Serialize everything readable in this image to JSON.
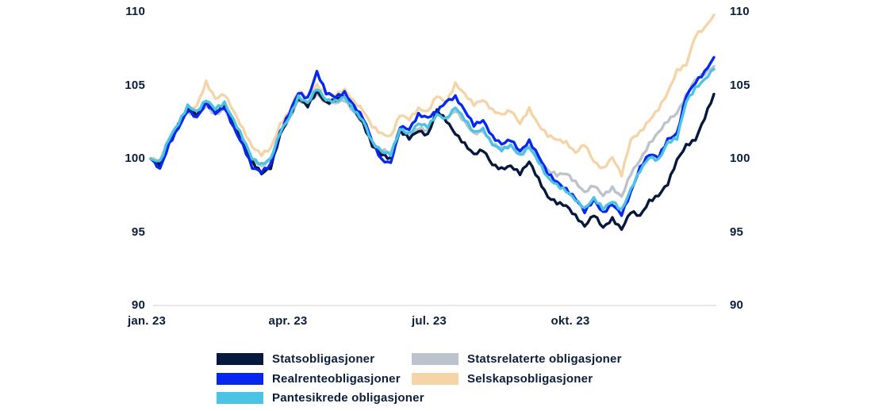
{
  "chart_data": {
    "type": "line",
    "title": "",
    "xlabel": "",
    "ylabel": "",
    "ylim": [
      90,
      110
    ],
    "grid": false,
    "legend_position": "bottom",
    "x_unit": "months (jan. 2023 - jan. 2024), 62 evenly spaced samples",
    "x_tick_labels": [
      "jan. 23",
      "apr. 23",
      "jul. 23",
      "okt. 23"
    ],
    "y_tick_labels": [
      "110",
      "105",
      "100",
      "95",
      "90"
    ],
    "y_ticks": [
      90,
      95,
      100,
      105,
      110
    ],
    "axis_line_color": "#DBDBDB",
    "text_color": "#0A1E3C",
    "series": [
      {
        "name": "Statsobligasjoner",
        "color": "#06183D",
        "values": [
          100.0,
          99.6,
          101.2,
          102.3,
          103.4,
          103.0,
          103.9,
          103.2,
          103.6,
          102.4,
          101.3,
          99.8,
          99.0,
          99.4,
          101.6,
          102.9,
          104.1,
          103.6,
          104.6,
          103.8,
          104.0,
          104.3,
          103.4,
          102.4,
          100.9,
          100.3,
          100.0,
          101.9,
          101.4,
          101.9,
          101.6,
          103.3,
          102.6,
          101.7,
          101.0,
          100.3,
          100.6,
          99.6,
          99.3,
          99.5,
          99.0,
          99.8,
          98.6,
          97.4,
          97.0,
          96.8,
          96.1,
          95.4,
          96.2,
          95.3,
          95.9,
          95.2,
          96.4,
          96.1,
          97.1,
          97.5,
          98.3,
          99.9,
          100.9,
          101.3,
          102.8,
          104.4
        ]
      },
      {
        "name": "Realrenteobligasjoner",
        "color": "#0527F0",
        "values": [
          100.0,
          99.3,
          101.0,
          102.1,
          103.3,
          102.8,
          103.8,
          103.1,
          103.5,
          102.1,
          100.9,
          99.4,
          99.1,
          99.6,
          101.8,
          103.1,
          104.5,
          104.1,
          105.9,
          104.5,
          104.2,
          104.5,
          103.6,
          102.8,
          101.2,
          99.9,
          99.7,
          102.2,
          102.0,
          103.0,
          102.8,
          103.2,
          103.9,
          104.2,
          103.3,
          102.3,
          102.6,
          101.5,
          101.0,
          101.3,
          100.5,
          101.2,
          100.2,
          99.0,
          98.4,
          97.9,
          97.3,
          96.4,
          97.2,
          96.3,
          96.9,
          96.2,
          97.7,
          99.4,
          100.3,
          100.1,
          101.3,
          101.7,
          104.3,
          105.2,
          105.9,
          106.9
        ]
      },
      {
        "name": "Pantesikrede obligasjoner",
        "color": "#4CC3E4",
        "values": [
          100.0,
          99.8,
          101.4,
          102.4,
          103.6,
          103.2,
          104.0,
          103.4,
          103.8,
          102.6,
          101.4,
          100.0,
          99.6,
          100.0,
          101.8,
          102.8,
          104.2,
          103.8,
          104.8,
          104.0,
          103.9,
          104.2,
          103.3,
          102.6,
          101.1,
          100.5,
          100.3,
          102.0,
          101.7,
          102.4,
          102.2,
          103.0,
          102.7,
          103.5,
          102.7,
          101.8,
          102.0,
          101.0,
          100.6,
          100.9,
          100.2,
          100.8,
          99.8,
          98.7,
          98.2,
          97.8,
          97.2,
          96.6,
          97.3,
          96.6,
          97.1,
          96.5,
          97.9,
          99.2,
          100.1,
          99.9,
          101.1,
          101.4,
          103.9,
          104.8,
          105.4,
          106.1
        ]
      },
      {
        "name": "Statsrelaterte obligasjoner",
        "color": "#BDC3CD",
        "values": [
          100.0,
          99.7,
          101.1,
          102.2,
          103.2,
          102.9,
          103.6,
          103.0,
          103.4,
          102.3,
          101.2,
          99.9,
          99.5,
          99.9,
          101.7,
          102.7,
          104.0,
          103.6,
          104.4,
          103.8,
          103.8,
          104.0,
          103.2,
          102.4,
          101.0,
          100.6,
          100.4,
          101.9,
          101.6,
          102.1,
          101.9,
          103.2,
          102.7,
          103.3,
          102.5,
          101.7,
          101.9,
          101.0,
          100.7,
          100.9,
          100.4,
          100.9,
          100.0,
          99.2,
          98.9,
          99.0,
          98.4,
          97.7,
          98.2,
          97.5,
          98.0,
          97.4,
          99.0,
          99.9,
          101.0,
          101.8,
          102.6,
          103.1,
          104.3,
          105.4,
          105.8,
          106.3
        ]
      },
      {
        "name": "Selskapsobligasjoner",
        "color": "#F5D5A7",
        "values": [
          100.0,
          99.9,
          101.3,
          102.3,
          103.3,
          103.6,
          105.2,
          104.1,
          104.4,
          103.2,
          102.0,
          100.8,
          100.3,
          100.7,
          102.3,
          103.2,
          104.6,
          104.2,
          105.0,
          104.4,
          104.3,
          104.7,
          103.9,
          103.3,
          102.2,
          101.7,
          101.5,
          103.0,
          102.7,
          103.4,
          103.2,
          104.3,
          103.8,
          105.1,
          104.4,
          103.7,
          104.0,
          103.3,
          103.0,
          103.3,
          102.4,
          103.4,
          102.3,
          101.6,
          101.3,
          101.1,
          100.4,
          101.0,
          99.8,
          99.3,
          100.1,
          98.9,
          101.3,
          101.8,
          102.6,
          103.4,
          104.5,
          106.0,
          106.4,
          108.4,
          108.9,
          109.8
        ]
      }
    ]
  }
}
